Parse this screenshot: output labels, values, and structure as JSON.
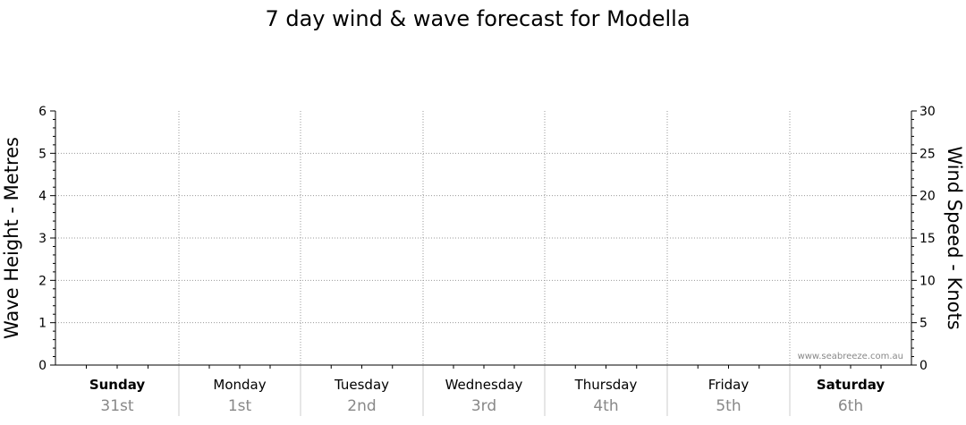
{
  "chart_data": {
    "type": "line",
    "title": "7 day wind & wave forecast for Modella",
    "y_left": {
      "label": "Wave Height - Metres",
      "range": [
        0,
        6
      ],
      "ticks": [
        0,
        1,
        2,
        3,
        4,
        5,
        6
      ]
    },
    "y_right": {
      "label": "Wind Speed - Knots",
      "range": [
        0,
        30
      ],
      "ticks": [
        0,
        5,
        10,
        15,
        20,
        25,
        30
      ]
    },
    "grid": true,
    "days": [
      {
        "name": "Sunday",
        "date": "31st",
        "bold": true
      },
      {
        "name": "Monday",
        "date": "1st",
        "bold": false
      },
      {
        "name": "Tuesday",
        "date": "2nd",
        "bold": false
      },
      {
        "name": "Wednesday",
        "date": "3rd",
        "bold": false
      },
      {
        "name": "Thursday",
        "date": "4th",
        "bold": false
      },
      {
        "name": "Friday",
        "date": "5th",
        "bold": false
      },
      {
        "name": "Saturday",
        "date": "6th",
        "bold": true
      }
    ],
    "series": [],
    "watermark": "www.seabreeze.com.au"
  }
}
